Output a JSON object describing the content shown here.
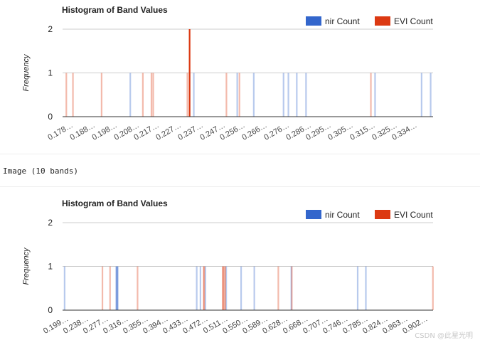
{
  "colors": {
    "nir": "#3366cc",
    "evi": "#dc3912",
    "grid": "#cccccc",
    "axis": "#333333",
    "text": "#222222",
    "tick_text": "#444444"
  },
  "console": {
    "line": "Image (10 bands)"
  },
  "watermark": "CSDN @此星光明",
  "chart_data": [
    {
      "type": "bar",
      "title": "Histogram of Band Values",
      "ylabel": "Frequency",
      "xlabel": "",
      "xlim": [
        0.175,
        0.343
      ],
      "ylim": [
        0,
        2
      ],
      "yticks": [
        "0",
        "1",
        "2"
      ],
      "legend": {
        "position": "top-right",
        "entries": [
          "nir Count",
          "EVI Count"
        ]
      },
      "x_tick_labels": [
        "0.178…",
        "0.188…",
        "0.198…",
        "0.208…",
        "0.217…",
        "0.227…",
        "0.237…",
        "0.247…",
        "0.256…",
        "0.266…",
        "0.276…",
        "0.286…",
        "0.295…",
        "0.305…",
        "0.315…",
        "0.325…",
        "0.334…"
      ],
      "x_tick_values": [
        0.178,
        0.188,
        0.198,
        0.208,
        0.217,
        0.227,
        0.237,
        0.247,
        0.256,
        0.266,
        0.276,
        0.286,
        0.295,
        0.305,
        0.315,
        0.325,
        0.334
      ],
      "bar_width": 0.0007,
      "series": [
        {
          "name": "nir Count",
          "color": "#3366cc",
          "alpha": 0.35,
          "x": [
            0.2057,
            0.2326,
            0.2345,
            0.2542,
            0.2617,
            0.2752,
            0.2774,
            0.2812,
            0.2854,
            0.3167,
            0.3378,
            0.3419
          ],
          "values": [
            1,
            1,
            1,
            1,
            1,
            1,
            1,
            1,
            1,
            1,
            1,
            1
          ]
        },
        {
          "name": "EVI Count",
          "color": "#dc3912",
          "alpha": 0.35,
          "x": [
            0.1767,
            0.1797,
            0.1927,
            0.2114,
            0.2153,
            0.2161,
            0.2316,
            0.2493,
            0.2552,
            0.3148
          ],
          "values": [
            1,
            1,
            1,
            1,
            1,
            1,
            1,
            1,
            1,
            1
          ]
        },
        {
          "name": "EVI Count",
          "color": "#dc3912",
          "alpha": 1,
          "x": [
            0.2326
          ],
          "values": [
            2
          ]
        }
      ]
    },
    {
      "type": "bar",
      "title": "Histogram of Band Values",
      "ylabel": "Frequency",
      "xlabel": "",
      "xlim": [
        0.195,
        0.92
      ],
      "ylim": [
        0,
        2
      ],
      "yticks": [
        "0",
        "1",
        "2"
      ],
      "legend": {
        "position": "top-right",
        "entries": [
          "nir Count",
          "EVI Count"
        ]
      },
      "x_tick_labels": [
        "0.199…",
        "0.238…",
        "0.277…",
        "0.316…",
        "0.355…",
        "0.394…",
        "0.433…",
        "0.472…",
        "0.511…",
        "0.550…",
        "0.589…",
        "0.628…",
        "0.668…",
        "0.707…",
        "0.746…",
        "0.785…",
        "0.824…",
        "0.863…",
        "0.902…"
      ],
      "x_tick_values": [
        0.199,
        0.238,
        0.277,
        0.316,
        0.355,
        0.394,
        0.433,
        0.472,
        0.511,
        0.55,
        0.589,
        0.628,
        0.668,
        0.707,
        0.746,
        0.785,
        0.824,
        0.863,
        0.902
      ],
      "bar_width": 0.003,
      "series": [
        {
          "name": "nir Count",
          "color": "#3366cc",
          "alpha": 0.35,
          "x": [
            0.199,
            0.3,
            0.301,
            0.302,
            0.303,
            0.4575,
            0.4648,
            0.4745,
            0.5152,
            0.5444,
            0.5702,
            0.6426,
            0.7725,
            0.7885
          ],
          "values": [
            1,
            1,
            1,
            1,
            1,
            1,
            1,
            1,
            1,
            1,
            1,
            1,
            1,
            1
          ]
        },
        {
          "name": "EVI Count",
          "color": "#dc3912",
          "alpha": 0.35,
          "x": [
            0.273,
            0.2879,
            0.3417,
            0.4711,
            0.472,
            0.5082,
            0.5094,
            0.5115,
            0.5135,
            0.6172,
            0.6436,
            0.9197
          ],
          "values": [
            1,
            1,
            1,
            1,
            1,
            1,
            1,
            1,
            1,
            1,
            1,
            1
          ]
        }
      ]
    }
  ]
}
